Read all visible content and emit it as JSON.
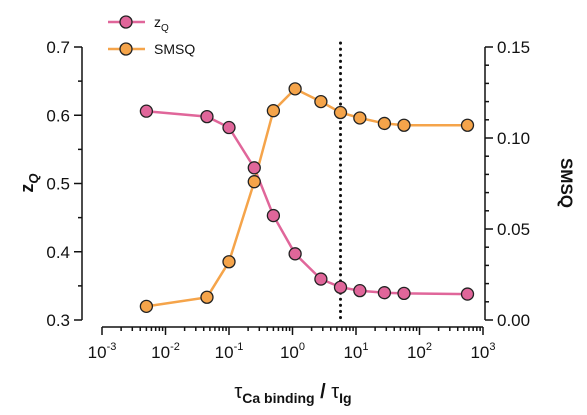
{
  "chart_data": {
    "type": "line",
    "x_scale": "log",
    "xlim": [
      0.001,
      1000
    ],
    "x_ticks": [
      {
        "base": "10",
        "exp": "-3"
      },
      {
        "base": "10",
        "exp": "-2"
      },
      {
        "base": "10",
        "exp": "-1"
      },
      {
        "base": "10",
        "exp": "0"
      },
      {
        "base": "10",
        "exp": "1"
      },
      {
        "base": "10",
        "exp": "2"
      },
      {
        "base": "10",
        "exp": "3"
      }
    ],
    "xlabel": {
      "main1": "τ",
      "sub1": "Ca binding",
      "sep": "/",
      "main2": "τ",
      "sub2": "Ig"
    },
    "y_left": {
      "label_main": "z",
      "label_sub": "Q",
      "lim": [
        0.3,
        0.7
      ],
      "ticks": [
        "0.3",
        "0.4",
        "0.5",
        "0.6",
        "0.7"
      ]
    },
    "y_right": {
      "label": "SMSQ",
      "lim": [
        0.0,
        0.15
      ],
      "ticks": [
        "0.00",
        "0.05",
        "0.10",
        "0.15"
      ]
    },
    "x": [
      0.005,
      0.045,
      0.1,
      0.25,
      0.5,
      1.1,
      2.8,
      5.7,
      11.5,
      28,
      57,
      570
    ],
    "series": [
      {
        "name": "zQ",
        "name_main": "z",
        "name_sub": "Q",
        "axis": "left",
        "color": "#e0669a",
        "values": [
          0.606,
          0.598,
          0.582,
          0.523,
          0.453,
          0.397,
          0.36,
          0.348,
          0.343,
          0.34,
          0.339,
          0.338
        ]
      },
      {
        "name": "SMSQ",
        "axis": "right",
        "color": "#f5a44a",
        "values": [
          0.0075,
          0.0125,
          0.032,
          0.076,
          0.115,
          0.127,
          0.12,
          0.114,
          0.111,
          0.108,
          0.107,
          0.107
        ]
      }
    ],
    "reference_line": {
      "x": 5.7,
      "style": "dotted"
    },
    "legend": "top-left",
    "grid": false
  }
}
